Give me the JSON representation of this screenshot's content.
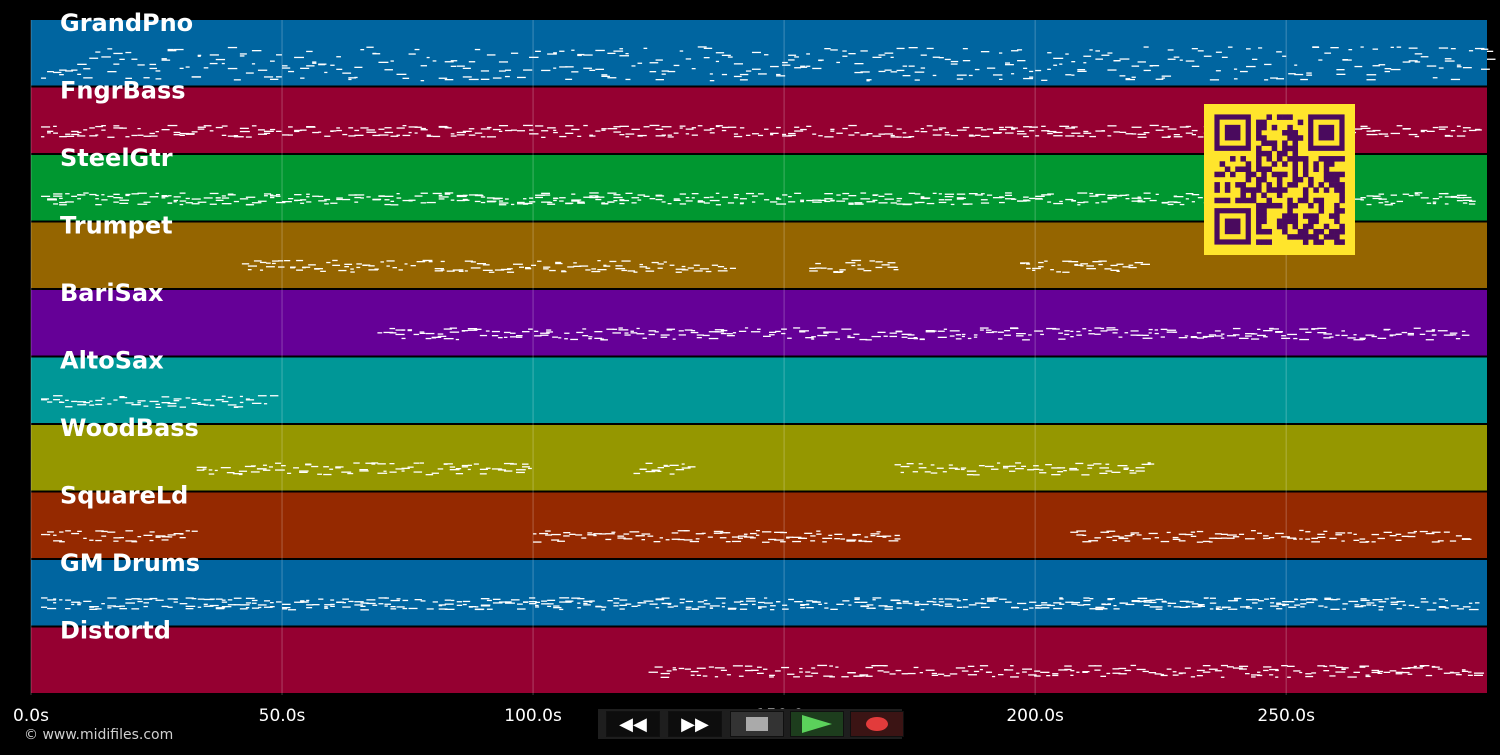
{
  "tracks": [
    {
      "name": "GrandPno",
      "color": "#0065a0"
    },
    {
      "name": "FngrBass",
      "color": "#950031"
    },
    {
      "name": "SteelGtr",
      "color": "#009730"
    },
    {
      "name": "Trumpet",
      "color": "#956500"
    },
    {
      "name": "BariSax",
      "color": "#650097"
    },
    {
      "name": "AltoSax",
      "color": "#009797"
    },
    {
      "name": "WoodBass",
      "color": "#959700"
    },
    {
      "name": "SquareLd",
      "color": "#952900"
    },
    {
      "name": "GM Drums",
      "color": "#0065a0"
    },
    {
      "name": "Distortd",
      "color": "#950031"
    }
  ],
  "timeline": {
    "unit": "s",
    "max_seconds": 290,
    "ticks": [
      "0.0s",
      "50.0s",
      "100.0s",
      "150.0s",
      "200.0s",
      "250.0s"
    ],
    "tick_values": [
      0,
      50,
      100,
      150,
      200,
      250
    ]
  },
  "footer": {
    "copyright": "© www.midifiles.com"
  },
  "transport": {
    "rewind_icon": "rewind-icon",
    "fast_forward_icon": "fast-forward-icon",
    "stop_icon": "stop-icon",
    "play_icon": "play-icon",
    "record_icon": "record-icon"
  },
  "qr_code": {
    "foreground": "#4a0a5e",
    "background": "#ffe52c"
  }
}
